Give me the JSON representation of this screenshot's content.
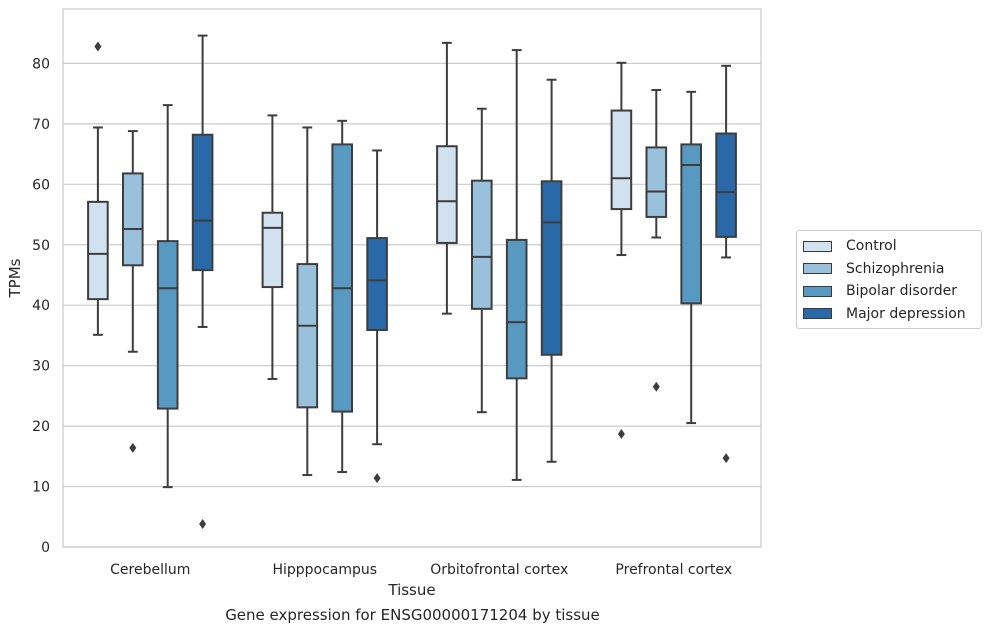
{
  "chart_data": {
    "type": "boxplot",
    "xlabel": "Tissue",
    "ylabel": "TPMs",
    "caption": "Gene expression for ENSG00000171204 by tissue",
    "ylim": [
      0,
      89
    ],
    "yticks": [
      0,
      10,
      20,
      30,
      40,
      50,
      60,
      70,
      80
    ],
    "grid": "horizontal",
    "legend_position": "right",
    "categories": [
      "Cerebellum",
      "Hipppocampus",
      "Orbitofrontal cortex",
      "Prefrontal cortex"
    ],
    "series": [
      {
        "name": "Control",
        "color": "#d1e1f0",
        "boxes": [
          {
            "whisker_low": 35.1,
            "q1": 41.0,
            "median": 48.5,
            "q3": 57.1,
            "whisker_high": 69.4,
            "outliers": [
              82.8
            ]
          },
          {
            "whisker_low": 27.8,
            "q1": 43.0,
            "median": 52.8,
            "q3": 55.3,
            "whisker_high": 71.4,
            "outliers": []
          },
          {
            "whisker_low": 38.6,
            "q1": 50.3,
            "median": 57.2,
            "q3": 66.3,
            "whisker_high": 83.4,
            "outliers": []
          },
          {
            "whisker_low": 48.3,
            "q1": 55.9,
            "median": 61.0,
            "q3": 72.2,
            "whisker_high": 80.1,
            "outliers": [
              18.7
            ]
          }
        ]
      },
      {
        "name": "Schizophrenia",
        "color": "#9ac1db",
        "boxes": [
          {
            "whisker_low": 32.3,
            "q1": 46.6,
            "median": 52.6,
            "q3": 61.8,
            "whisker_high": 68.8,
            "outliers": [
              16.4
            ]
          },
          {
            "whisker_low": 11.9,
            "q1": 23.1,
            "median": 36.6,
            "q3": 46.8,
            "whisker_high": 69.4,
            "outliers": []
          },
          {
            "whisker_low": 22.3,
            "q1": 39.4,
            "median": 48.0,
            "q3": 60.6,
            "whisker_high": 72.5,
            "outliers": []
          },
          {
            "whisker_low": 51.2,
            "q1": 54.6,
            "median": 58.8,
            "q3": 66.1,
            "whisker_high": 75.6,
            "outliers": [
              26.5
            ]
          }
        ]
      },
      {
        "name": "Bipolar disorder",
        "color": "#5899c1",
        "boxes": [
          {
            "whisker_low": 9.9,
            "q1": 22.9,
            "median": 42.8,
            "q3": 50.6,
            "whisker_high": 73.1,
            "outliers": []
          },
          {
            "whisker_low": 12.4,
            "q1": 22.4,
            "median": 42.8,
            "q3": 66.6,
            "whisker_high": 70.5,
            "outliers": []
          },
          {
            "whisker_low": 11.1,
            "q1": 27.9,
            "median": 37.2,
            "q3": 50.8,
            "whisker_high": 82.2,
            "outliers": []
          },
          {
            "whisker_low": 20.5,
            "q1": 40.3,
            "median": 63.2,
            "q3": 66.6,
            "whisker_high": 75.3,
            "outliers": []
          }
        ]
      },
      {
        "name": "Major depression",
        "color": "#2a69a8",
        "boxes": [
          {
            "whisker_low": 36.4,
            "q1": 45.8,
            "median": 54.0,
            "q3": 68.2,
            "whisker_high": 84.6,
            "outliers": [
              3.8
            ]
          },
          {
            "whisker_low": 17.0,
            "q1": 35.9,
            "median": 44.1,
            "q3": 51.1,
            "whisker_high": 65.6,
            "outliers": [
              11.4
            ]
          },
          {
            "whisker_low": 14.1,
            "q1": 31.8,
            "median": 53.7,
            "q3": 60.5,
            "whisker_high": 77.3,
            "outliers": []
          },
          {
            "whisker_low": 47.9,
            "q1": 51.3,
            "median": 58.7,
            "q3": 68.4,
            "whisker_high": 79.6,
            "outliers": [
              14.7
            ]
          }
        ]
      }
    ]
  }
}
